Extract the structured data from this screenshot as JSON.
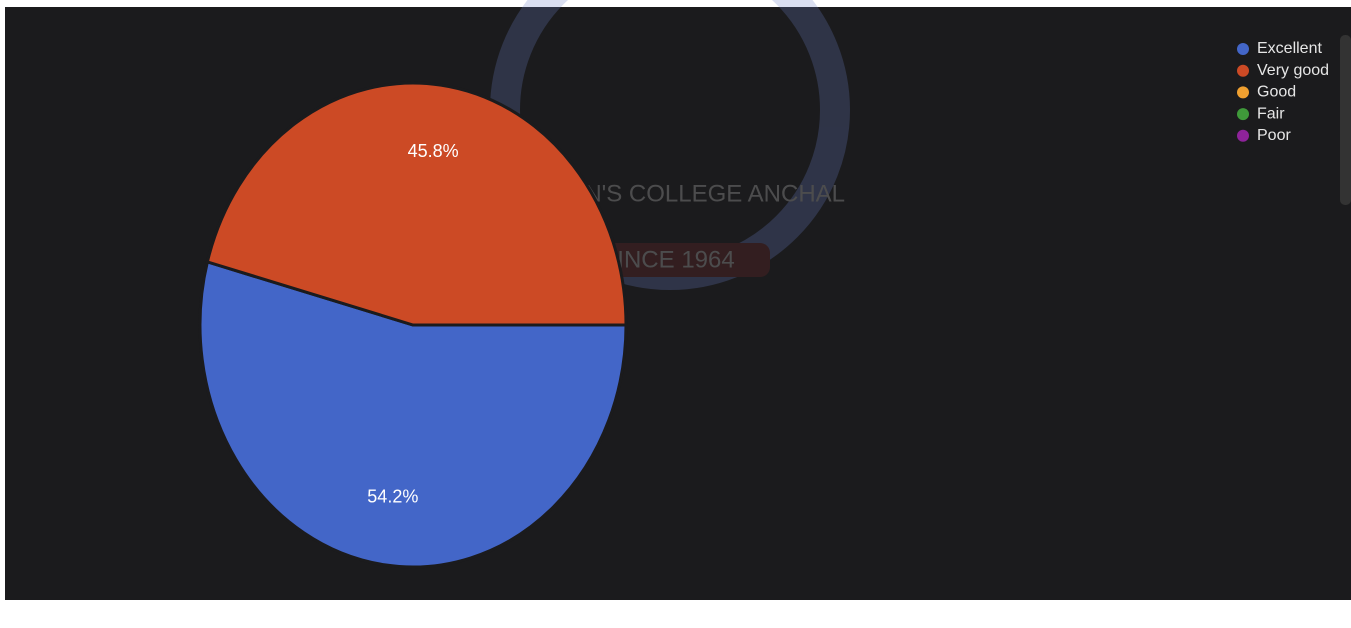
{
  "chart_data": {
    "type": "pie",
    "categories": [
      "Excellent",
      "Very good",
      "Good",
      "Fair",
      "Poor"
    ],
    "values": [
      54.2,
      45.8,
      0,
      0,
      0
    ],
    "value_labels": [
      "54.2%",
      "45.8%",
      null,
      null,
      null
    ],
    "colors": [
      "#4366c8",
      "#cc4a25",
      "#f0a030",
      "#3f9a3a",
      "#8e239a"
    ],
    "legend": "top-right"
  },
  "watermark": {
    "lines": [
      "ST. JOHN'S COLLEGE ANCHAL",
      "SINCE 1964"
    ]
  }
}
